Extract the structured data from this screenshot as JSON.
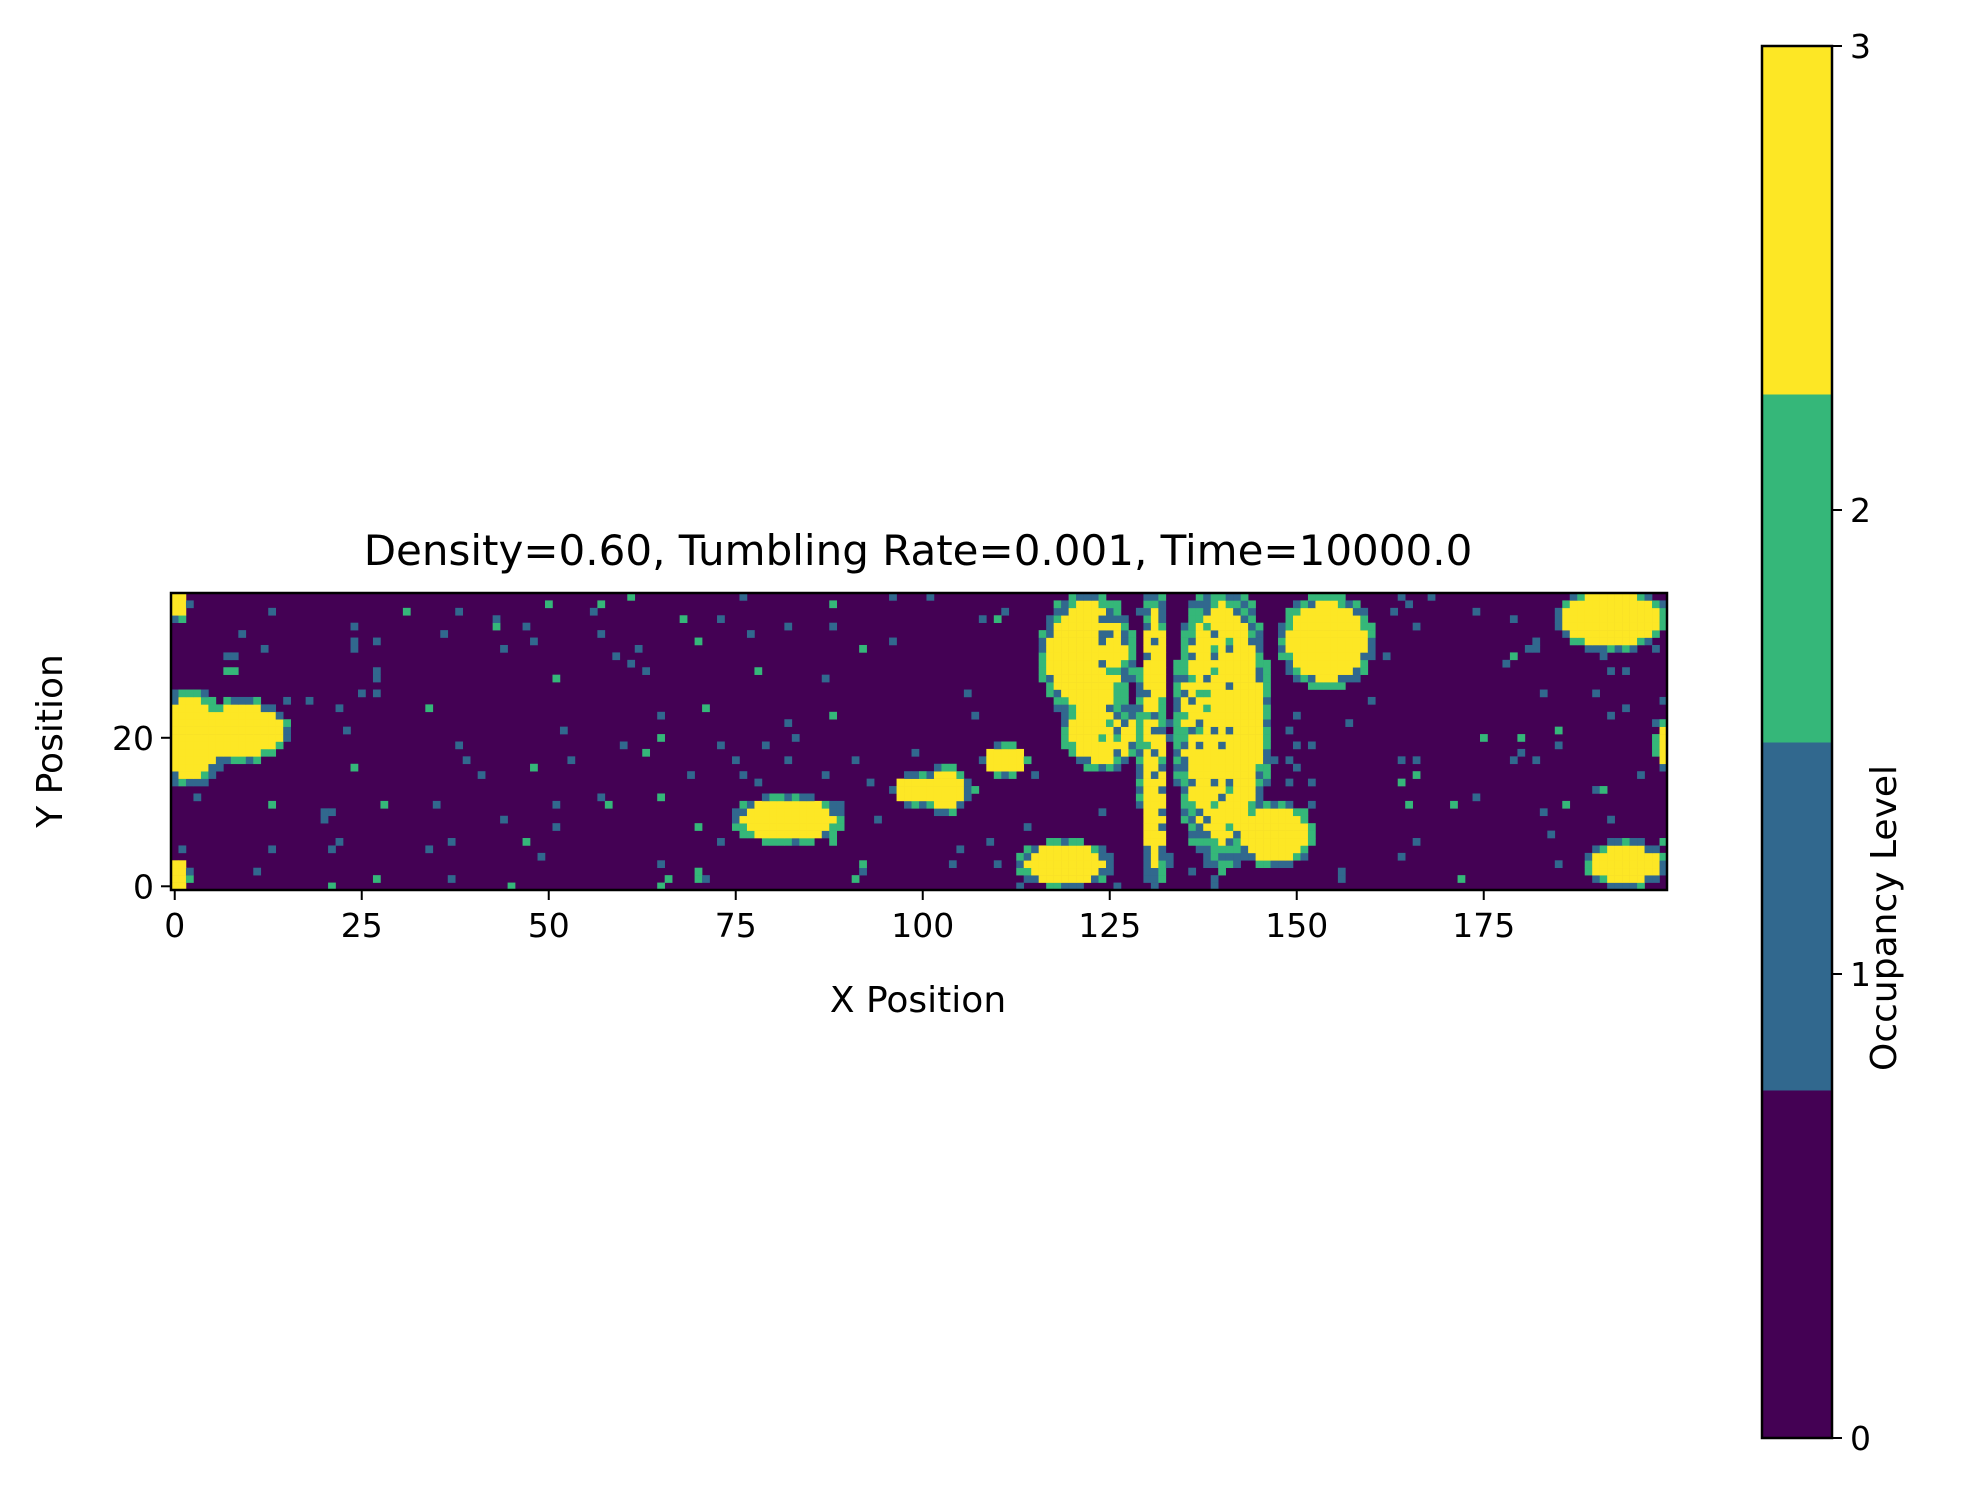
{
  "chart_data": {
    "type": "heatmap",
    "title": "Density=0.60, Tumbling Rate=0.001, Time=10000.0",
    "xlabel": "X Position",
    "ylabel": "Y Position",
    "grid_width": 200,
    "grid_height": 40,
    "xlim": [
      0,
      199
    ],
    "ylim": [
      0,
      39
    ],
    "x_ticks": [
      "0",
      "25",
      "50",
      "75",
      "100",
      "125",
      "150",
      "175"
    ],
    "y_ticks": [
      "0",
      "20"
    ],
    "colorbar": {
      "label": "Occupancy Level",
      "ticks": [
        "0",
        "1",
        "2",
        "3"
      ],
      "levels": [
        0,
        1,
        2,
        3
      ],
      "colors": [
        "#440154",
        "#31688e",
        "#35b779",
        "#fde725"
      ]
    },
    "clusters_level3": [
      {
        "cx": 2,
        "cy": 20,
        "rx": 5,
        "ry": 6
      },
      {
        "cx": 9,
        "cy": 21,
        "rx": 6,
        "ry": 4
      },
      {
        "cx": 0.5,
        "cy": 38,
        "rx": 1.5,
        "ry": 2
      },
      {
        "cx": 0.5,
        "cy": 1.5,
        "rx": 1.5,
        "ry": 2
      },
      {
        "cx": 82,
        "cy": 9,
        "rx": 7,
        "ry": 3
      },
      {
        "cx": 99,
        "cy": 13,
        "rx": 3,
        "ry": 2
      },
      {
        "cx": 103,
        "cy": 13,
        "rx": 3,
        "ry": 3
      },
      {
        "cx": 111,
        "cy": 17,
        "rx": 3,
        "ry": 2
      },
      {
        "cx": 119,
        "cy": 3,
        "rx": 6,
        "ry": 3
      },
      {
        "cx": 122,
        "cy": 31,
        "rx": 6,
        "ry": 8
      },
      {
        "cx": 124,
        "cy": 21,
        "rx": 5,
        "ry": 5
      },
      {
        "cx": 131,
        "cy": 20,
        "rx": 2,
        "ry": 20
      },
      {
        "cx": 140,
        "cy": 22,
        "rx": 6,
        "ry": 18
      },
      {
        "cx": 147,
        "cy": 7,
        "rx": 5,
        "ry": 4
      },
      {
        "cx": 154,
        "cy": 33,
        "rx": 6,
        "ry": 6
      },
      {
        "cx": 192,
        "cy": 36,
        "rx": 7,
        "ry": 4
      },
      {
        "cx": 194,
        "cy": 3,
        "rx": 5,
        "ry": 3
      },
      {
        "cx": 199,
        "cy": 19,
        "rx": 1,
        "ry": 3
      }
    ]
  }
}
